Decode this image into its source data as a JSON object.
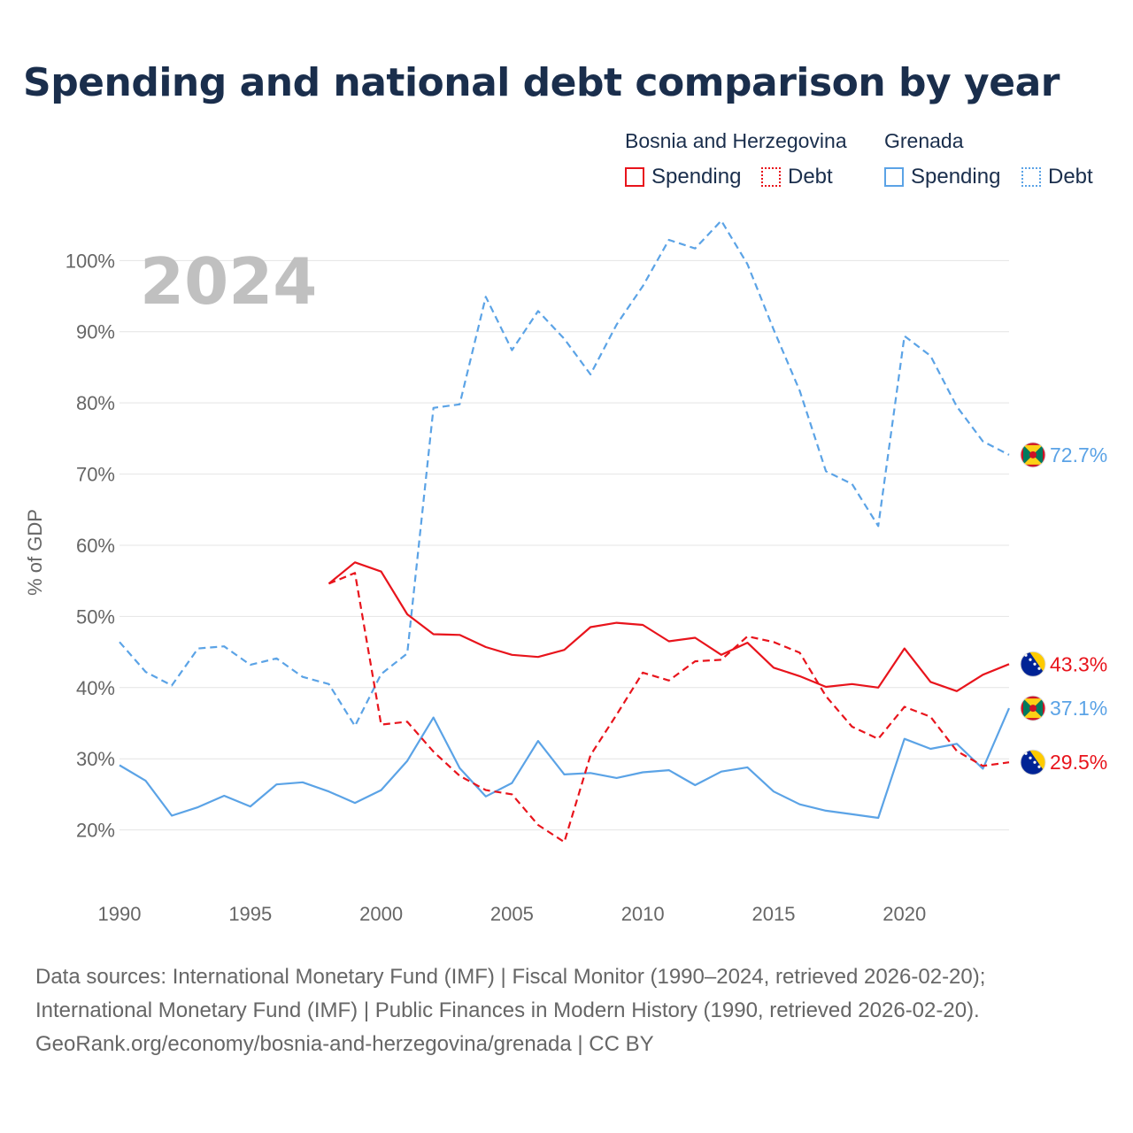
{
  "title": "Spending and national debt comparison by year",
  "legend": {
    "groups": [
      {
        "name": "Bosnia and Herzegovina",
        "spending_label": "Spending",
        "debt_label": "Debt",
        "color": "#e8141c"
      },
      {
        "name": "Grenada",
        "spending_label": "Spending",
        "debt_label": "Debt",
        "color": "#5ba3e6"
      }
    ]
  },
  "year_label": "2024",
  "footer": {
    "line1": "Data sources: International Monetary Fund (IMF) | Fiscal Monitor (1990–2024, retrieved 2026-02-20);",
    "line2": "International Monetary Fund (IMF) | Public Finances in Modern History (1990, retrieved 2026-02-20).",
    "line3": "GeoRank.org/economy/bosnia-and-herzegovina/grenada | CC BY"
  },
  "chart_data": {
    "type": "line",
    "title": "Spending and national debt comparison by year",
    "xlabel": "",
    "ylabel": "% of GDP",
    "xlim": [
      1990,
      2024
    ],
    "ylim": [
      11,
      108
    ],
    "x_ticks": [
      1990,
      1995,
      2000,
      2005,
      2010,
      2015,
      2020
    ],
    "y_ticks": [
      20,
      30,
      40,
      50,
      60,
      70,
      80,
      90,
      100
    ],
    "y_tick_labels": [
      "20%",
      "30%",
      "40%",
      "50%",
      "60%",
      "70%",
      "80%",
      "90%",
      "100%"
    ],
    "series": [
      {
        "name": "Grenada Debt",
        "country": "Grenada",
        "metric": "Debt",
        "color": "#5ba3e6",
        "dashed": true,
        "end_label": "72.7%",
        "flag": "grenada",
        "x": [
          1990,
          1991,
          1992,
          1993,
          1994,
          1995,
          1996,
          1997,
          1998,
          1999,
          2000,
          2001,
          2002,
          2003,
          2004,
          2005,
          2006,
          2007,
          2008,
          2009,
          2010,
          2011,
          2012,
          2013,
          2014,
          2015,
          2016,
          2017,
          2018,
          2019,
          2020,
          2021,
          2022,
          2023,
          2024
        ],
        "y": [
          46.4,
          42.2,
          40.3,
          45.5,
          45.8,
          43.2,
          44.1,
          41.5,
          40.5,
          34.6,
          41.9,
          44.8,
          79.3,
          79.8,
          94.9,
          87.4,
          92.9,
          89.0,
          84.0,
          91.0,
          96.4,
          102.9,
          101.7,
          105.6,
          99.5,
          90.3,
          81.7,
          70.4,
          68.6,
          62.7,
          89.4,
          86.6,
          79.5,
          74.6,
          72.7
        ]
      },
      {
        "name": "Grenada Spending",
        "country": "Grenada",
        "metric": "Spending",
        "color": "#5ba3e6",
        "dashed": false,
        "end_label": "37.1%",
        "flag": "grenada",
        "x": [
          1990,
          1991,
          1992,
          1993,
          1994,
          1995,
          1996,
          1997,
          1998,
          1999,
          2000,
          2001,
          2002,
          2003,
          2004,
          2005,
          2006,
          2007,
          2008,
          2009,
          2010,
          2011,
          2012,
          2013,
          2014,
          2015,
          2016,
          2017,
          2018,
          2019,
          2020,
          2021,
          2022,
          2023,
          2024
        ],
        "y": [
          29.1,
          26.9,
          22.0,
          23.2,
          24.8,
          23.3,
          26.4,
          26.7,
          25.4,
          23.8,
          25.6,
          29.7,
          35.8,
          28.7,
          24.7,
          26.6,
          32.5,
          27.8,
          28.0,
          27.3,
          28.1,
          28.4,
          26.3,
          28.2,
          28.8,
          25.4,
          23.6,
          22.7,
          22.2,
          21.7,
          32.8,
          31.4,
          32.1,
          28.6,
          37.1
        ]
      },
      {
        "name": "Bosnia and Herzegovina Spending",
        "country": "Bosnia and Herzegovina",
        "metric": "Spending",
        "color": "#e8141c",
        "dashed": false,
        "end_label": "43.3%",
        "flag": "bosnia",
        "x": [
          1998,
          1999,
          2000,
          2001,
          2002,
          2003,
          2004,
          2005,
          2006,
          2007,
          2008,
          2009,
          2010,
          2011,
          2012,
          2013,
          2014,
          2015,
          2016,
          2017,
          2018,
          2019,
          2020,
          2021,
          2022,
          2023,
          2024
        ],
        "y": [
          54.6,
          57.6,
          56.3,
          50.3,
          47.5,
          47.4,
          45.7,
          44.6,
          44.3,
          45.3,
          48.5,
          49.1,
          48.8,
          46.5,
          47.0,
          44.6,
          46.3,
          42.8,
          41.6,
          40.1,
          40.5,
          40.0,
          45.5,
          40.8,
          39.5,
          41.8,
          43.3
        ]
      },
      {
        "name": "Bosnia and Herzegovina Debt",
        "country": "Bosnia and Herzegovina",
        "metric": "Debt",
        "color": "#e8141c",
        "dashed": true,
        "end_label": "29.5%",
        "flag": "bosnia",
        "x": [
          1998,
          1999,
          2000,
          2001,
          2002,
          2003,
          2004,
          2005,
          2006,
          2007,
          2008,
          2009,
          2010,
          2011,
          2012,
          2013,
          2014,
          2015,
          2016,
          2017,
          2018,
          2019,
          2020,
          2021,
          2022,
          2023,
          2024
        ],
        "y": [
          54.6,
          56.1,
          34.8,
          35.2,
          31.0,
          27.6,
          25.6,
          25.0,
          20.7,
          18.3,
          30.5,
          36.2,
          42.1,
          41.0,
          43.7,
          43.9,
          47.2,
          46.4,
          44.9,
          38.8,
          34.5,
          32.8,
          37.3,
          35.9,
          31.1,
          29.0,
          29.5
        ]
      }
    ]
  }
}
